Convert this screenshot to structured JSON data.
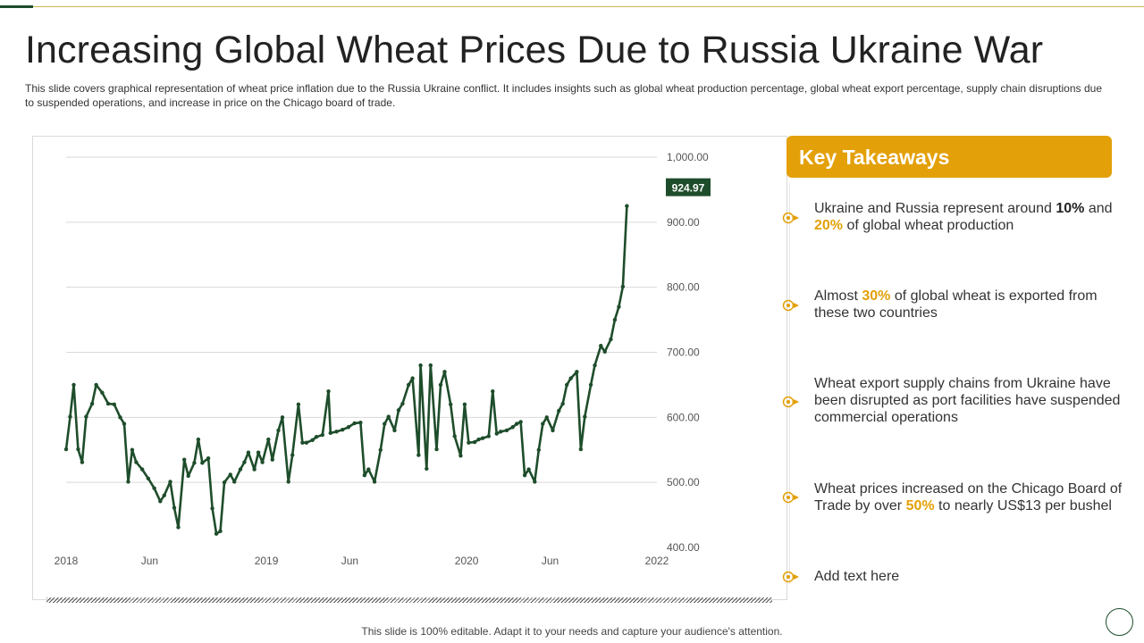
{
  "slide": {
    "title": "Increasing Global Wheat Prices Due to Russia Ukraine War",
    "description": "This slide covers graphical representation of wheat price inflation due to the Russia Ukraine conflict. It includes insights such as global wheat production percentage,  global wheat export percentage, supply chain disruptions due to suspended operations, and increase in price on the Chicago board of trade.",
    "footer": "This slide is 100% editable. Adapt it to your needs and capture your audience's attention."
  },
  "takeaways": {
    "header": "Key Takeaways",
    "items": [
      {
        "parts": [
          {
            "text": "Ukraine and Russia represent around ",
            "style": "normal"
          },
          {
            "text": "10%",
            "style": "bold"
          },
          {
            "text": " and ",
            "style": "normal"
          },
          {
            "text": "20%",
            "style": "gold"
          },
          {
            "text": " of global wheat production",
            "style": "normal"
          }
        ]
      },
      {
        "parts": [
          {
            "text": "Almost ",
            "style": "normal"
          },
          {
            "text": "30%",
            "style": "gold"
          },
          {
            "text": " of global wheat is exported from these two countries",
            "style": "normal"
          }
        ]
      },
      {
        "parts": [
          {
            "text": "Wheat export supply chains from Ukraine have been disrupted as port facilities have suspended commercial operations",
            "style": "normal"
          }
        ]
      },
      {
        "parts": [
          {
            "text": "Wheat prices increased on the Chicago Board of Trade by over ",
            "style": "normal"
          },
          {
            "text": "50%",
            "style": "gold"
          },
          {
            "text": " to nearly US$13 per bushel",
            "style": "normal"
          }
        ]
      },
      {
        "parts": [
          {
            "text": "Add text here",
            "style": "normal"
          }
        ]
      }
    ]
  },
  "colors": {
    "line": "#1e4d2b",
    "accent": "#e3a008",
    "grid": "#d9d9d9"
  },
  "chart_data": {
    "type": "line",
    "title": "",
    "xlabel": "",
    "ylabel": "",
    "ylim": [
      400,
      1000
    ],
    "y_ticks": [
      "1,000.00",
      "900.00",
      "800.00",
      "700.00",
      "600.00",
      "500.00",
      "400.00"
    ],
    "y_tick_values": [
      1000,
      900,
      800,
      700,
      600,
      500,
      400
    ],
    "x_ticks": [
      {
        "label": "2018",
        "t": 0
      },
      {
        "label": "Jun",
        "t": 0.4167
      },
      {
        "label": "2019",
        "t": 1
      },
      {
        "label": "Jun",
        "t": 1.4167
      },
      {
        "label": "2020",
        "t": 2
      },
      {
        "label": "Jun",
        "t": 2.4167
      },
      {
        "label": "2022",
        "t": 2.95
      }
    ],
    "last_value_label": "924.97",
    "series": [
      {
        "values": [
          [
            0.0,
            551
          ],
          [
            0.02,
            601
          ],
          [
            0.038,
            650
          ],
          [
            0.06,
            551
          ],
          [
            0.08,
            531
          ],
          [
            0.1,
            601
          ],
          [
            0.13,
            621
          ],
          [
            0.15,
            650
          ],
          [
            0.18,
            638
          ],
          [
            0.21,
            621
          ],
          [
            0.24,
            620
          ],
          [
            0.27,
            600
          ],
          [
            0.29,
            590
          ],
          [
            0.31,
            501
          ],
          [
            0.33,
            550
          ],
          [
            0.35,
            531
          ],
          [
            0.38,
            520
          ],
          [
            0.41,
            506
          ],
          [
            0.44,
            491
          ],
          [
            0.47,
            471
          ],
          [
            0.49,
            480
          ],
          [
            0.52,
            501
          ],
          [
            0.54,
            461
          ],
          [
            0.56,
            431
          ],
          [
            0.59,
            535
          ],
          [
            0.61,
            510
          ],
          [
            0.64,
            530
          ],
          [
            0.66,
            566
          ],
          [
            0.68,
            530
          ],
          [
            0.71,
            537
          ],
          [
            0.73,
            460
          ],
          [
            0.75,
            421
          ],
          [
            0.77,
            425
          ],
          [
            0.79,
            500
          ],
          [
            0.82,
            512
          ],
          [
            0.84,
            501
          ],
          [
            0.87,
            520
          ],
          [
            0.89,
            531
          ],
          [
            0.91,
            546
          ],
          [
            0.94,
            520
          ],
          [
            0.96,
            546
          ],
          [
            0.98,
            531
          ],
          [
            1.01,
            566
          ],
          [
            1.03,
            535
          ],
          [
            1.06,
            580
          ],
          [
            1.08,
            600
          ],
          [
            1.11,
            501
          ],
          [
            1.13,
            542
          ],
          [
            1.16,
            620
          ],
          [
            1.18,
            561
          ],
          [
            1.2,
            561
          ],
          [
            1.23,
            565
          ],
          [
            1.25,
            570
          ],
          [
            1.28,
            573
          ],
          [
            1.31,
            640
          ],
          [
            1.32,
            576
          ],
          [
            1.35,
            578
          ],
          [
            1.38,
            581
          ],
          [
            1.41,
            585
          ],
          [
            1.44,
            591
          ],
          [
            1.47,
            592
          ],
          [
            1.49,
            511
          ],
          [
            1.51,
            520
          ],
          [
            1.54,
            501
          ],
          [
            1.57,
            550
          ],
          [
            1.59,
            590
          ],
          [
            1.61,
            601
          ],
          [
            1.64,
            580
          ],
          [
            1.66,
            611
          ],
          [
            1.68,
            621
          ],
          [
            1.71,
            650
          ],
          [
            1.73,
            660
          ],
          [
            1.76,
            542
          ],
          [
            1.77,
            680
          ],
          [
            1.8,
            521
          ],
          [
            1.82,
            680
          ],
          [
            1.85,
            551
          ],
          [
            1.87,
            650
          ],
          [
            1.89,
            670
          ],
          [
            1.92,
            620
          ],
          [
            1.94,
            571
          ],
          [
            1.97,
            541
          ],
          [
            1.99,
            620
          ],
          [
            2.01,
            561
          ],
          [
            2.04,
            562
          ],
          [
            2.06,
            566
          ],
          [
            2.08,
            568
          ],
          [
            2.11,
            571
          ],
          [
            2.13,
            640
          ],
          [
            2.15,
            575
          ],
          [
            2.17,
            578
          ],
          [
            2.2,
            580
          ],
          [
            2.23,
            585
          ],
          [
            2.25,
            590
          ],
          [
            2.27,
            593
          ],
          [
            2.29,
            511
          ],
          [
            2.31,
            520
          ],
          [
            2.34,
            501
          ],
          [
            2.36,
            550
          ],
          [
            2.38,
            590
          ],
          [
            2.4,
            600
          ],
          [
            2.43,
            580
          ],
          [
            2.46,
            610
          ],
          [
            2.48,
            621
          ],
          [
            2.5,
            650
          ],
          [
            2.52,
            660
          ],
          [
            2.55,
            670
          ],
          [
            2.57,
            551
          ],
          [
            2.59,
            601
          ],
          [
            2.62,
            650
          ],
          [
            2.64,
            680
          ],
          [
            2.67,
            710
          ],
          [
            2.69,
            701
          ],
          [
            2.72,
            720
          ],
          [
            2.74,
            750
          ],
          [
            2.76,
            770
          ],
          [
            2.78,
            801
          ],
          [
            2.8,
            924.97
          ]
        ]
      }
    ]
  }
}
